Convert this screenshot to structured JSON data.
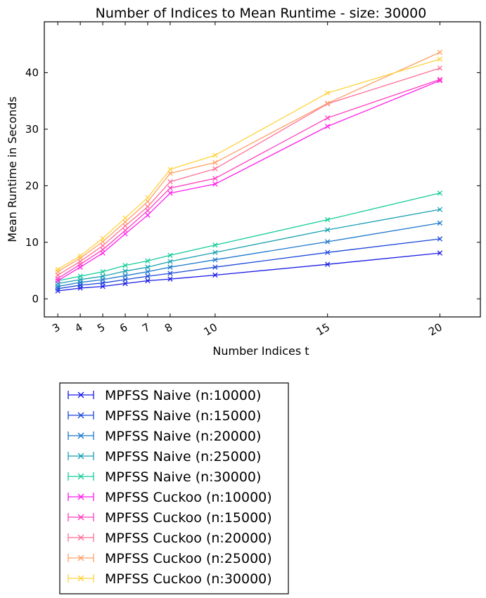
{
  "chart_data": {
    "type": "line",
    "title": "Number of Indices to Mean Runtime - size: 30000",
    "xlabel": "Number Indices t",
    "ylabel": "Mean Runtime in Seconds",
    "x": [
      3,
      4,
      5,
      6,
      7,
      8,
      10,
      15,
      20
    ],
    "xlim": [
      2.4,
      21.8
    ],
    "ylim": [
      -3.2,
      49
    ],
    "xticks": [
      "3",
      "4",
      "5",
      "6",
      "7",
      "8",
      "10",
      "15",
      "20"
    ],
    "yticks": [
      0,
      10,
      20,
      30,
      40
    ],
    "grid": false,
    "legend_position": "below plot, left",
    "series": [
      {
        "name": "MPFSS Naive (n:10000)",
        "color": "#1a1ae6",
        "values": [
          1.4,
          1.9,
          2.2,
          2.7,
          3.2,
          3.5,
          4.2,
          6.1,
          8.1
        ]
      },
      {
        "name": "MPFSS Naive (n:15000)",
        "color": "#1a46d9",
        "values": [
          1.8,
          2.4,
          2.8,
          3.4,
          4.0,
          4.5,
          5.6,
          8.2,
          10.6
        ]
      },
      {
        "name": "MPFSS Naive (n:20000)",
        "color": "#1a78cc",
        "values": [
          2.2,
          2.9,
          3.4,
          4.1,
          4.8,
          5.6,
          6.9,
          10.1,
          13.4
        ]
      },
      {
        "name": "MPFSS Naive (n:25000)",
        "color": "#17a0b0",
        "values": [
          2.7,
          3.4,
          4.0,
          4.9,
          5.6,
          6.6,
          8.2,
          12.2,
          15.8
        ]
      },
      {
        "name": "MPFSS Naive (n:30000)",
        "color": "#14cc99",
        "values": [
          3.2,
          4.0,
          4.8,
          5.9,
          6.7,
          7.7,
          9.5,
          14.0,
          18.7
        ]
      },
      {
        "name": "MPFSS Cuckoo (n:10000)",
        "color": "#ff1aee",
        "values": [
          3.2,
          5.6,
          8.1,
          11.5,
          14.8,
          18.7,
          20.3,
          30.5,
          38.6
        ]
      },
      {
        "name": "MPFSS Cuckoo (n:15000)",
        "color": "#ff3cbe",
        "values": [
          3.6,
          6.1,
          8.7,
          12.1,
          15.6,
          19.6,
          21.3,
          32.0,
          38.8
        ]
      },
      {
        "name": "MPFSS Cuckoo (n:20000)",
        "color": "#ff6e96",
        "values": [
          4.2,
          6.6,
          9.4,
          12.9,
          16.3,
          20.7,
          23.0,
          34.5,
          40.8
        ]
      },
      {
        "name": "MPFSS Cuckoo (n:25000)",
        "color": "#ffa064",
        "values": [
          4.8,
          7.2,
          10.1,
          13.6,
          17.2,
          22.2,
          24.1,
          34.6,
          43.6
        ]
      },
      {
        "name": "MPFSS Cuckoo (n:30000)",
        "color": "#ffd23c",
        "values": [
          5.2,
          7.6,
          10.7,
          14.3,
          17.9,
          22.9,
          25.4,
          36.4,
          42.4
        ]
      }
    ]
  }
}
